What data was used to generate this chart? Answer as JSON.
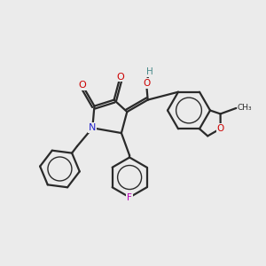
{
  "background_color": "#ebebeb",
  "bond_color": "#2a2a2a",
  "atom_colors": {
    "O": "#cc0000",
    "N": "#2222cc",
    "F": "#bb00bb",
    "H": "#4a8a8a",
    "C": "#2a2a2a"
  },
  "lw": 1.6,
  "figsize": [
    3.0,
    3.0
  ],
  "dpi": 100,
  "xlim": [
    0,
    10
  ],
  "ylim": [
    0,
    10
  ]
}
